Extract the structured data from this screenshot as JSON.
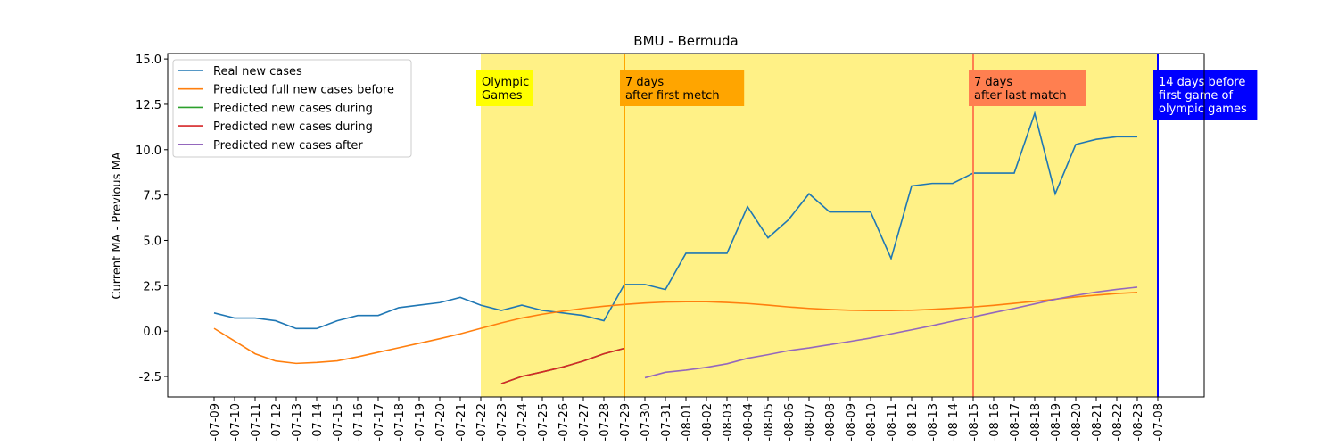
{
  "chart_data": {
    "type": "line",
    "title": "BMU - Bermuda",
    "ylabel": "Current MA - Previous MA",
    "categories": [
      "-07-09",
      "-07-10",
      "-07-11",
      "-07-12",
      "-07-13",
      "-07-14",
      "-07-15",
      "-07-16",
      "-07-17",
      "-07-18",
      "-07-19",
      "-07-20",
      "-07-21",
      "-07-22",
      "-07-23",
      "-07-24",
      "-07-25",
      "-07-26",
      "-07-27",
      "-07-28",
      "-07-29",
      "-07-30",
      "-07-31",
      "-08-01",
      "-08-02",
      "-08-03",
      "-08-04",
      "-08-05",
      "-08-06",
      "-08-07",
      "-08-08",
      "-08-09",
      "-08-10",
      "-08-11",
      "-08-12",
      "-08-13",
      "-08-14",
      "-08-15",
      "-08-16",
      "-08-17",
      "-08-18",
      "-08-19",
      "-08-20",
      "-08-21",
      "-08-22",
      "-08-23",
      "-07-08"
    ],
    "series": [
      {
        "name": "Real new cases",
        "color": "#1f77b4",
        "values": [
          1.0,
          0.72,
          0.72,
          0.57,
          0.14,
          0.14,
          0.57,
          0.86,
          0.86,
          1.29,
          1.43,
          1.57,
          1.86,
          1.43,
          1.14,
          1.43,
          1.14,
          1.0,
          0.86,
          0.57,
          2.57,
          2.57,
          2.29,
          4.29,
          4.29,
          4.29,
          6.86,
          5.14,
          6.14,
          7.57,
          6.57,
          6.57,
          6.57,
          4.0,
          8.0,
          8.14,
          8.14,
          8.71,
          8.71,
          8.71,
          12.0,
          7.57,
          10.29,
          10.57,
          10.71,
          10.71,
          null
        ]
      },
      {
        "name": "Predicted full new cases before",
        "color": "#ff7f0e",
        "values": [
          0.15,
          -0.55,
          -1.25,
          -1.65,
          -1.78,
          -1.73,
          -1.64,
          -1.42,
          -1.17,
          -0.92,
          -0.67,
          -0.42,
          -0.15,
          0.15,
          0.45,
          0.72,
          0.93,
          1.1,
          1.25,
          1.37,
          1.47,
          1.55,
          1.6,
          1.62,
          1.62,
          1.58,
          1.52,
          1.43,
          1.33,
          1.25,
          1.19,
          1.15,
          1.13,
          1.13,
          1.15,
          1.2,
          1.26,
          1.33,
          1.42,
          1.53,
          1.64,
          1.76,
          1.88,
          1.98,
          2.07,
          2.13,
          null
        ]
      },
      {
        "name": "Predicted new cases during",
        "color": "#2ca02c",
        "values": [
          null,
          null,
          null,
          null,
          null,
          null,
          null,
          null,
          null,
          null,
          null,
          null,
          null,
          null,
          -2.9,
          -2.5,
          -2.25,
          -1.98,
          -1.65,
          -1.25,
          -0.95,
          null,
          null,
          null,
          null,
          null,
          null,
          null,
          null,
          null,
          null,
          null,
          null,
          null,
          null,
          null,
          null,
          null,
          null,
          null,
          null,
          null,
          null,
          null,
          null,
          null,
          null
        ]
      },
      {
        "name": "Predicted new cases during",
        "color": "#d62728",
        "values": [
          null,
          null,
          null,
          null,
          null,
          null,
          null,
          null,
          null,
          null,
          null,
          null,
          null,
          null,
          -2.9,
          -2.5,
          -2.25,
          -1.98,
          -1.65,
          -1.25,
          -0.95,
          null,
          null,
          null,
          null,
          null,
          null,
          null,
          null,
          null,
          null,
          null,
          null,
          null,
          null,
          null,
          null,
          null,
          null,
          null,
          null,
          null,
          null,
          null,
          null,
          null,
          null
        ]
      },
      {
        "name": "Predicted new cases after",
        "color": "#9467bd",
        "values": [
          null,
          null,
          null,
          null,
          null,
          null,
          null,
          null,
          null,
          null,
          null,
          null,
          null,
          null,
          null,
          null,
          null,
          null,
          null,
          null,
          null,
          -2.57,
          -2.27,
          -2.15,
          -2.0,
          -1.8,
          -1.5,
          -1.3,
          -1.08,
          -0.93,
          -0.75,
          -0.57,
          -0.38,
          -0.15,
          0.07,
          0.3,
          0.55,
          0.78,
          1.02,
          1.25,
          1.5,
          1.75,
          1.97,
          2.15,
          2.3,
          2.42,
          null
        ]
      }
    ],
    "ylim": [
      -3.63,
      15.3
    ],
    "yticks": [
      -2.5,
      {
        "value": 0,
        "label": "0.0"
      },
      2.5,
      {
        "value": 5,
        "label": "5.0"
      },
      7.5,
      {
        "value": 10,
        "label": "10.0"
      },
      12.5,
      {
        "value": 15,
        "label": "15.0"
      }
    ],
    "legend": "upper left",
    "span": {
      "from": "-07-22",
      "to": "-07-08",
      "color": "#fff080"
    },
    "vlines": [
      {
        "at": "-07-29",
        "color": "#ffa500",
        "lines": [
          "7 days",
          "after first metch"
        ],
        "box": "#ffa500",
        "text_color": "#000000"
      },
      {
        "at": "-08-15",
        "color": "#ff7f50",
        "lines": [
          "7 days",
          "after last match"
        ],
        "box": "#ff7f50",
        "text_color": "#000000"
      },
      {
        "at": "-07-08",
        "color": "#0000ff",
        "lines": [
          "14 days before",
          "first game of",
          "olympic games"
        ],
        "box": "#0000ff",
        "text_color": "#ffffff"
      }
    ],
    "annotations": [
      {
        "at": "-07-22",
        "lines": [
          "Olympic",
          "Games"
        ],
        "box": "#ffff00",
        "text_color": "#000000"
      }
    ]
  }
}
